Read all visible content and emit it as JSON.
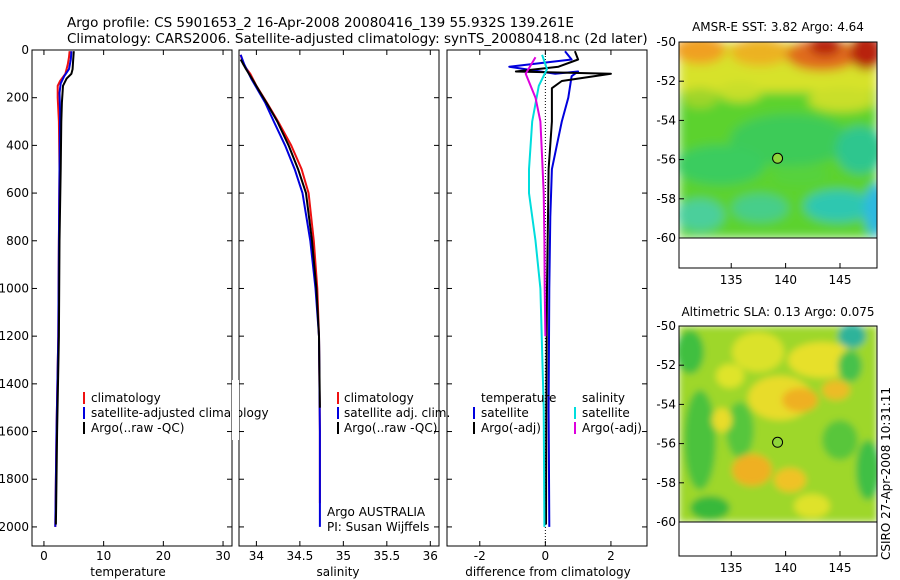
{
  "title": {
    "line1": "Argo profile: CS 5901653_2 16-Apr-2008 20080416_139 55.932S 139.261E",
    "line2": "Climatology: CARS2006. Satellite-adjusted climatology: synTS_20080418.nc (2d later)"
  },
  "credit": "CSIRO 27-Apr-2008 10:31:11",
  "chart_data": [
    {
      "id": "temperature",
      "type": "line",
      "xlabel": "temperature",
      "xlim": [
        -2,
        31.5
      ],
      "xticks": [
        0,
        10,
        20,
        30
      ],
      "ylim": [
        2080,
        0
      ],
      "yticks": [
        0,
        200,
        400,
        600,
        800,
        1000,
        1200,
        1400,
        1600,
        1800,
        2000
      ],
      "legend": [
        "climatology",
        "satellite-adjusted climatology",
        "Argo(..raw -QC)"
      ],
      "series": [
        {
          "name": "climatology",
          "color": "#ee1111",
          "points": [
            [
              4.3,
              5
            ],
            [
              4.2,
              30
            ],
            [
              4.0,
              60
            ],
            [
              3.6,
              100
            ],
            [
              2.7,
              130
            ],
            [
              2.3,
              150
            ],
            [
              2.3,
              200
            ],
            [
              2.5,
              300
            ],
            [
              2.6,
              500
            ],
            [
              2.5,
              800
            ],
            [
              2.4,
              1200
            ],
            [
              2.1,
              1600
            ],
            [
              1.9,
              2000
            ]
          ]
        },
        {
          "name": "satellite-adjusted climatology",
          "color": "#0000dd",
          "points": [
            [
              4.6,
              5
            ],
            [
              4.5,
              40
            ],
            [
              4.2,
              80
            ],
            [
              3.4,
              110
            ],
            [
              2.8,
              140
            ],
            [
              2.6,
              180
            ],
            [
              2.7,
              260
            ],
            [
              2.6,
              500
            ],
            [
              2.5,
              800
            ],
            [
              2.4,
              1200
            ],
            [
              2.1,
              1600
            ],
            [
              1.9,
              2000
            ]
          ]
        },
        {
          "name": "Argo(..raw -QC)",
          "color": "#000000",
          "points": [
            [
              5.0,
              5
            ],
            [
              4.9,
              40
            ],
            [
              4.8,
              80
            ],
            [
              4.6,
              100
            ],
            [
              3.8,
              120
            ],
            [
              3.2,
              150
            ],
            [
              3.0,
              220
            ],
            [
              2.9,
              300
            ],
            [
              2.8,
              500
            ],
            [
              2.6,
              800
            ],
            [
              2.5,
              1200
            ],
            [
              2.2,
              1600
            ],
            [
              2.0,
              1990
            ]
          ]
        }
      ]
    },
    {
      "id": "salinity",
      "type": "line",
      "xlabel": "salinity",
      "xlim": [
        33.8,
        36.1
      ],
      "xticks": [
        34,
        34.5,
        35,
        35.5,
        36
      ],
      "ylim": [
        2080,
        0
      ],
      "legend": [
        "climatology",
        "satellite adj. clim.",
        "Argo(..raw -QC)"
      ],
      "annotation": [
        "Argo AUSTRALIA",
        "PI: Susan Wijffels"
      ],
      "series": [
        {
          "name": "climatology",
          "color": "#ee1111",
          "points": [
            [
              33.82,
              20
            ],
            [
              33.85,
              60
            ],
            [
              33.93,
              100
            ],
            [
              34.0,
              150
            ],
            [
              34.12,
              220
            ],
            [
              34.25,
              300
            ],
            [
              34.4,
              400
            ],
            [
              34.52,
              500
            ],
            [
              34.6,
              600
            ],
            [
              34.66,
              800
            ],
            [
              34.7,
              1000
            ],
            [
              34.72,
              1200
            ],
            [
              34.73,
              1600
            ],
            [
              34.73,
              1900
            ]
          ]
        },
        {
          "name": "satellite adj. clim.",
          "color": "#0000dd",
          "points": [
            [
              33.82,
              20
            ],
            [
              33.86,
              60
            ],
            [
              33.94,
              120
            ],
            [
              34.02,
              170
            ],
            [
              34.1,
              220
            ],
            [
              34.2,
              300
            ],
            [
              34.33,
              400
            ],
            [
              34.44,
              500
            ],
            [
              34.53,
              600
            ],
            [
              34.62,
              800
            ],
            [
              34.68,
              1000
            ],
            [
              34.72,
              1200
            ],
            [
              34.73,
              1600
            ],
            [
              34.73,
              2000
            ]
          ]
        },
        {
          "name": "Argo(..raw -QC)",
          "color": "#000000",
          "points": [
            [
              33.82,
              40
            ],
            [
              33.88,
              80
            ],
            [
              33.95,
              120
            ],
            [
              34.03,
              170
            ],
            [
              34.13,
              230
            ],
            [
              34.24,
              300
            ],
            [
              34.37,
              400
            ],
            [
              34.48,
              500
            ],
            [
              34.57,
              600
            ],
            [
              34.64,
              800
            ],
            [
              34.69,
              1000
            ],
            [
              34.72,
              1200
            ],
            [
              34.73,
              1500
            ]
          ]
        }
      ]
    },
    {
      "id": "difference",
      "type": "line",
      "xlabel": "difference from climatology",
      "xlim": [
        -3,
        3.1
      ],
      "xticks": [
        -2,
        0,
        2
      ],
      "ylim": [
        2080,
        0
      ],
      "legend": {
        "temperature_title": "temperature",
        "salinity_title": "salinity",
        "temperature_entries": [
          "satellite",
          "Argo(-adj)"
        ],
        "salinity_entries": [
          "satellite",
          "Argo(-adj)"
        ]
      },
      "series": [
        {
          "name": "temperature satellite",
          "color": "#0000dd",
          "points": [
            [
              0.6,
              5
            ],
            [
              0.8,
              40
            ],
            [
              -1.1,
              70
            ],
            [
              0.3,
              100
            ],
            [
              1.0,
              90
            ],
            [
              0.8,
              110
            ],
            [
              0.7,
              200
            ],
            [
              0.5,
              300
            ],
            [
              0.35,
              400
            ],
            [
              0.2,
              500
            ],
            [
              0.15,
              700
            ],
            [
              0.12,
              1000
            ],
            [
              0.1,
              1500
            ],
            [
              0.12,
              2000
            ]
          ]
        },
        {
          "name": "temperature Argo(-adj)",
          "color": "#000000",
          "points": [
            [
              0.9,
              5
            ],
            [
              1.0,
              40
            ],
            [
              0.4,
              70
            ],
            [
              -0.9,
              90
            ],
            [
              2.0,
              100
            ],
            [
              0.5,
              130
            ],
            [
              0.2,
              160
            ],
            [
              0.2,
              300
            ],
            [
              0.1,
              500
            ],
            [
              0.08,
              700
            ],
            [
              0.05,
              1000
            ],
            [
              0.03,
              1500
            ],
            [
              0.02,
              1990
            ]
          ]
        },
        {
          "name": "salinity satellite",
          "color": "#00dddd",
          "points": [
            [
              -0.1,
              20
            ],
            [
              0.05,
              80
            ],
            [
              -0.2,
              150
            ],
            [
              -0.4,
              300
            ],
            [
              -0.5,
              500
            ],
            [
              -0.5,
              600
            ],
            [
              -0.3,
              800
            ],
            [
              -0.15,
              1000
            ],
            [
              -0.05,
              1500
            ],
            [
              -0.03,
              2000
            ]
          ]
        },
        {
          "name": "salinity Argo(-adj)",
          "color": "#dd00dd",
          "points": [
            [
              -0.3,
              30
            ],
            [
              -0.6,
              100
            ],
            [
              -0.3,
              200
            ],
            [
              -0.15,
              300
            ],
            [
              -0.1,
              450
            ],
            [
              -0.05,
              600
            ],
            [
              -0.03,
              800
            ],
            [
              -0.02,
              1000
            ],
            [
              0.0,
              1200
            ]
          ]
        }
      ]
    },
    {
      "id": "sst_map",
      "type": "heatmap",
      "title": "AMSR-E SST: 3.82 Argo: 4.64",
      "xticks": [
        135,
        140,
        145
      ],
      "yticks": [
        -50,
        -52,
        -54,
        -56,
        -58,
        -60
      ],
      "xlim": [
        130.2,
        148.4
      ],
      "ylim": [
        -61.8,
        -50
      ],
      "data_ylim": [
        -60,
        -50
      ],
      "marker": {
        "lon": 139.261,
        "lat": -55.932
      }
    },
    {
      "id": "sla_map",
      "type": "heatmap",
      "title": "Altimetric SLA: 0.13 Argo: 0.075",
      "xticks": [
        135,
        140,
        145
      ],
      "yticks": [
        -50,
        -52,
        -54,
        -56,
        -58,
        -60
      ],
      "xlim": [
        130.2,
        148.4
      ],
      "ylim": [
        -61.8,
        -50
      ],
      "data_ylim": [
        -60,
        -50
      ],
      "marker": {
        "lon": 139.261,
        "lat": -55.932
      }
    }
  ]
}
